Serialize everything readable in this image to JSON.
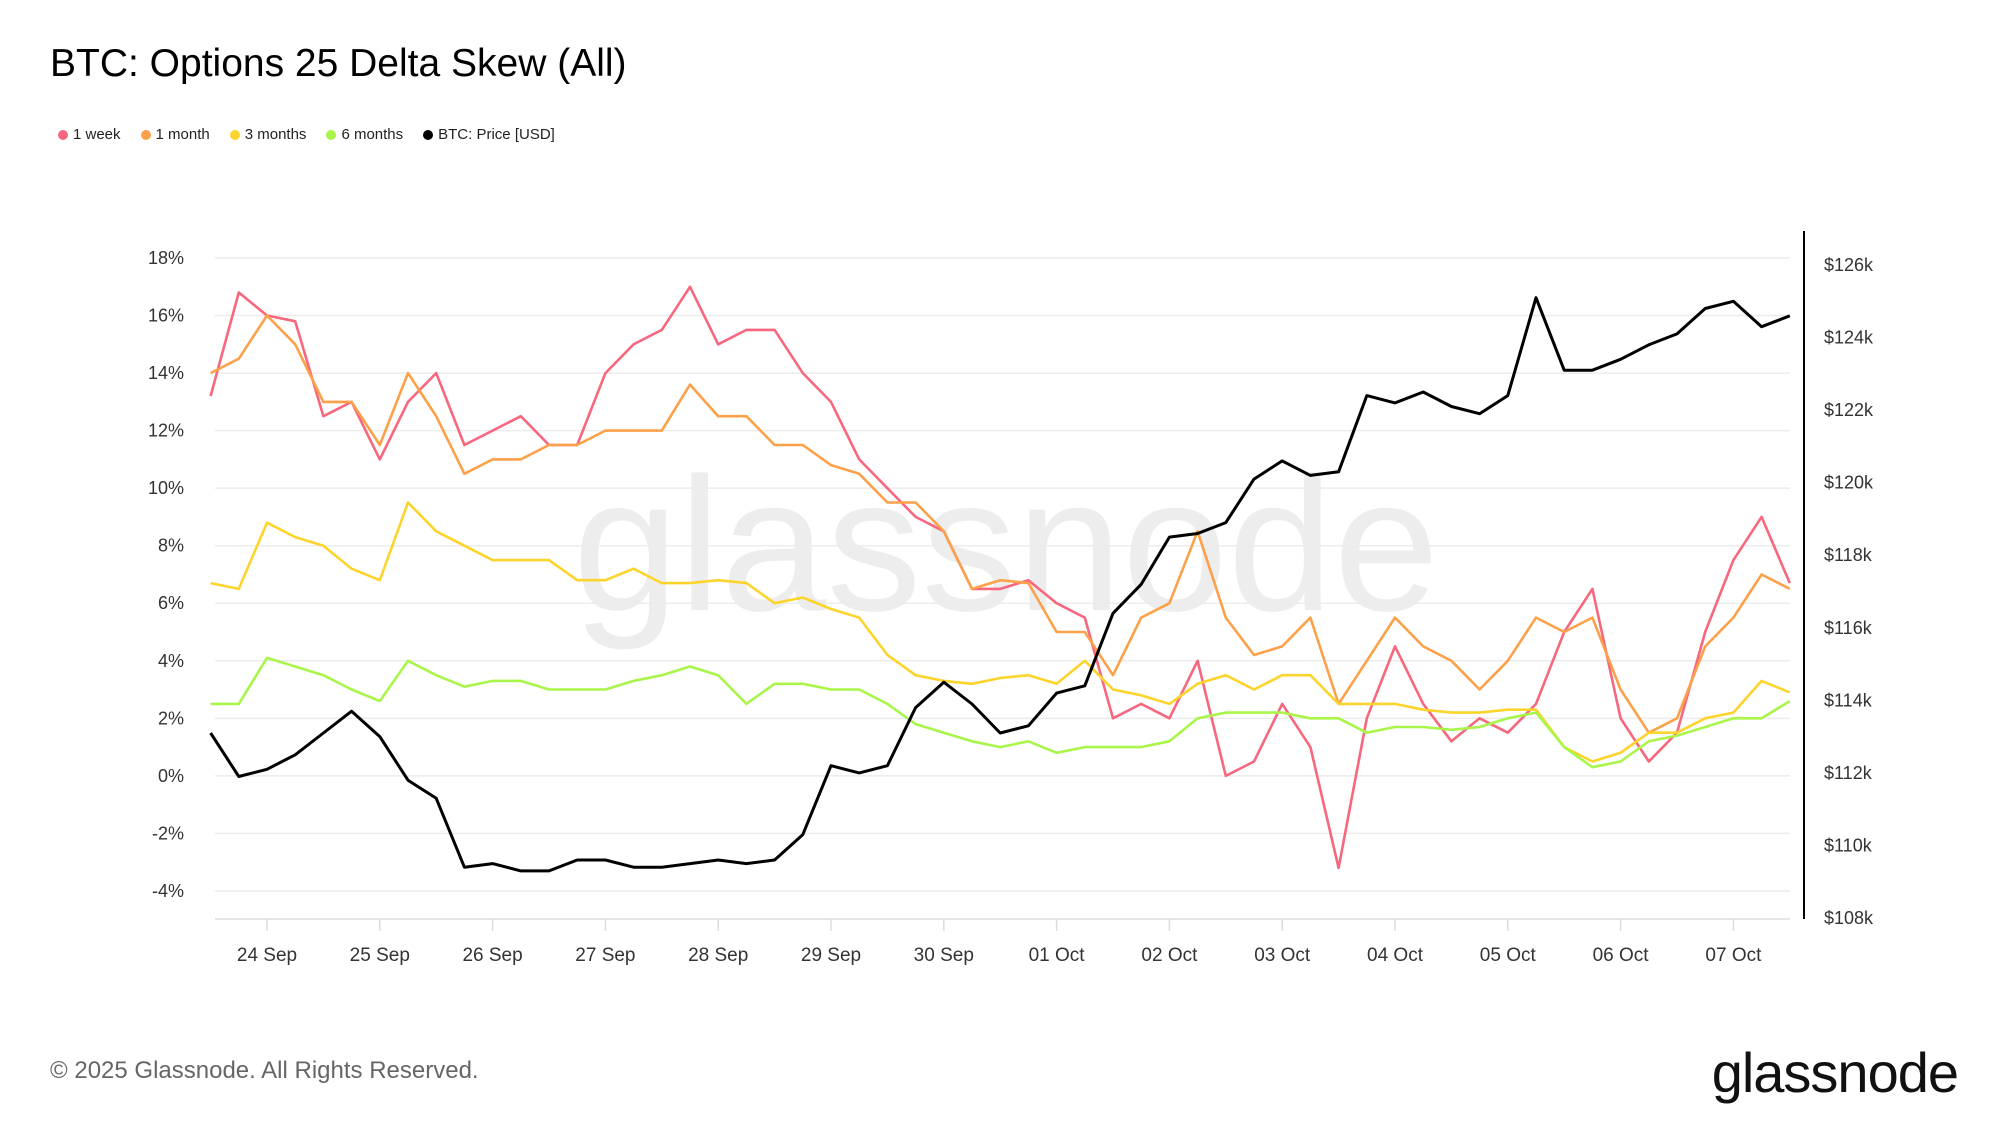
{
  "title": "BTC: Options 25 Delta Skew (All)",
  "footer": "© 2025 Glassnode. All Rights Reserved.",
  "logo": "glassnode",
  "watermark": "glassnode",
  "chart_data": {
    "type": "line",
    "title": "BTC: Options 25 Delta Skew (All)",
    "legend_position": "top-left",
    "x_start_day_offset": -0.5,
    "x_step_days": 0.25,
    "x_ticks": [
      "24 Sep",
      "25 Sep",
      "26 Sep",
      "27 Sep",
      "28 Sep",
      "29 Sep",
      "30 Sep",
      "01 Oct",
      "02 Oct",
      "03 Oct",
      "04 Oct",
      "05 Oct",
      "06 Oct",
      "07 Oct"
    ],
    "y_left": {
      "ticks": [
        18,
        16,
        14,
        12,
        10,
        8,
        6,
        4,
        2,
        0,
        -2,
        -4
      ],
      "labels": [
        "18%",
        "16%",
        "14%",
        "12%",
        "10%",
        "8%",
        "6%",
        "4%",
        "2%",
        "0%",
        "-2%",
        "-4%"
      ],
      "range": [
        -4.8,
        18
      ]
    },
    "y_right": {
      "ticks": [
        126,
        124,
        122,
        120,
        118,
        116,
        114,
        112,
        110,
        108
      ],
      "labels": [
        "$126k",
        "$124k",
        "$122k",
        "$120k",
        "$118k",
        "$116k",
        "$114k",
        "$112k",
        "$110k",
        "$108k"
      ],
      "range": [
        108,
        126
      ]
    },
    "grid": true,
    "series": [
      {
        "name": "1 week",
        "color": "#f7677e",
        "axis": "left",
        "values": [
          13.2,
          16.8,
          16,
          15.8,
          12.5,
          13,
          11,
          13,
          14,
          11.5,
          12,
          12.5,
          11.5,
          11.5,
          14,
          15,
          15.5,
          17,
          15,
          15.5,
          15.5,
          14,
          13,
          11,
          10,
          9,
          8.5,
          6.5,
          6.5,
          6.8,
          6,
          5.5,
          2,
          2.5,
          2,
          4,
          0,
          0.5,
          2.5,
          1,
          -3.2,
          2,
          4.5,
          2.5,
          1.2,
          2,
          1.5,
          2.5,
          5,
          6.5,
          2,
          0.5,
          1.5,
          5,
          7.5,
          9,
          6.7
        ]
      },
      {
        "name": "1 month",
        "color": "#fca149",
        "axis": "left",
        "values": [
          14,
          14.5,
          16,
          15,
          13,
          13,
          11.5,
          14,
          12.5,
          10.5,
          11,
          11,
          11.5,
          11.5,
          12,
          12,
          12,
          13.6,
          12.5,
          12.5,
          11.5,
          11.5,
          10.8,
          10.5,
          9.5,
          9.5,
          8.5,
          6.5,
          6.8,
          6.7,
          5,
          5,
          3.5,
          5.5,
          6,
          8.5,
          5.5,
          4.2,
          4.5,
          5.5,
          2.5,
          4,
          5.5,
          4.5,
          4,
          3,
          4,
          5.5,
          5,
          5.5,
          3,
          1.5,
          2,
          4.5,
          5.5,
          7,
          6.5
        ]
      },
      {
        "name": "3 months",
        "color": "#fcd42c",
        "axis": "left",
        "values": [
          6.7,
          6.5,
          8.8,
          8.3,
          8,
          7.2,
          6.8,
          9.5,
          8.5,
          8,
          7.5,
          7.5,
          7.5,
          6.8,
          6.8,
          7.2,
          6.7,
          6.7,
          6.8,
          6.7,
          6,
          6.2,
          5.8,
          5.5,
          4.2,
          3.5,
          3.3,
          3.2,
          3.4,
          3.5,
          3.2,
          4,
          3,
          2.8,
          2.5,
          3.2,
          3.5,
          3,
          3.5,
          3.5,
          2.5,
          2.5,
          2.5,
          2.3,
          2.2,
          2.2,
          2.3,
          2.3,
          1,
          0.5,
          0.8,
          1.5,
          1.5,
          2,
          2.2,
          3.3,
          2.9
        ]
      },
      {
        "name": "6 months",
        "color": "#a9f54a",
        "axis": "left",
        "values": [
          2.5,
          2.5,
          4.1,
          3.8,
          3.5,
          3,
          2.6,
          4,
          3.5,
          3.1,
          3.3,
          3.3,
          3,
          3,
          3,
          3.3,
          3.5,
          3.8,
          3.5,
          2.5,
          3.2,
          3.2,
          3,
          3,
          2.5,
          1.8,
          1.5,
          1.2,
          1,
          1.2,
          0.8,
          1,
          1,
          1,
          1.2,
          2,
          2.2,
          2.2,
          2.2,
          2,
          2,
          1.5,
          1.7,
          1.7,
          1.6,
          1.7,
          2,
          2.2,
          1,
          0.3,
          0.5,
          1.2,
          1.4,
          1.7,
          2,
          2,
          2.6
        ]
      },
      {
        "name": "BTC: Price [USD]",
        "color": "#000000",
        "axis": "right",
        "values": [
          113.1,
          111.9,
          112.1,
          112.5,
          113.1,
          113.7,
          113.0,
          111.8,
          111.3,
          109.4,
          109.5,
          109.3,
          109.3,
          109.6,
          109.6,
          109.4,
          109.4,
          109.5,
          109.6,
          109.5,
          109.6,
          110.3,
          112.2,
          112.0,
          112.2,
          113.8,
          114.5,
          113.9,
          113.1,
          113.3,
          114.2,
          114.4,
          116.4,
          117.2,
          118.5,
          118.6,
          118.9,
          120.1,
          120.6,
          120.2,
          120.3,
          122.4,
          122.2,
          122.5,
          122.1,
          121.9,
          122.4,
          125.1,
          123.1,
          123.1,
          123.4,
          123.8,
          124.1,
          124.8,
          125.0,
          124.3,
          124.6
        ]
      }
    ]
  }
}
